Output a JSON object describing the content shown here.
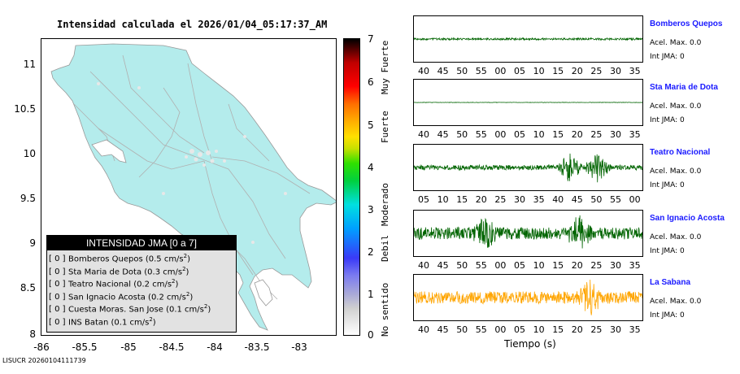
{
  "map": {
    "title": "Intensidad calculada el 2026/01/04_05:17:37_AM",
    "y_ticks": [
      "11",
      "10.5",
      "10",
      "9.5",
      "9",
      "8.5",
      "8"
    ],
    "x_ticks": [
      "-86",
      "-85.5",
      "-85",
      "-84.5",
      "-84",
      "-83.5",
      "-83"
    ],
    "land_color": "#b4ecec",
    "road_color": "#a0a0a0"
  },
  "legend": {
    "title": "INTENSIDAD JMA [0 a 7]",
    "rows": [
      {
        "bracket": "[ 0 ]",
        "text": "Bomberos Quepos (0.5 cm/s",
        "sup": "2",
        "close": ")"
      },
      {
        "bracket": "[ 0 ]",
        "text": "Sta Maria de Dota (0.3 cm/s",
        "sup": "2",
        "close": ")"
      },
      {
        "bracket": "[ 0 ]",
        "text": "Teatro Nacional (0.2 cm/s",
        "sup": "2",
        "close": ")"
      },
      {
        "bracket": "[ 0 ]",
        "text": "San Ignacio Acosta (0.2 cm/s",
        "sup": "2",
        "close": ")"
      },
      {
        "bracket": "[ 0 ]",
        "text": "Cuesta Moras. San Jose (0.1 cm/s",
        "sup": "2",
        "close": ")"
      },
      {
        "bracket": "[ 0 ]",
        "text": "INS Batan (0.1 cm/s",
        "sup": "2",
        "close": ")"
      }
    ]
  },
  "colorbar": {
    "ticks": [
      "7",
      "6",
      "5",
      "4",
      "3",
      "2",
      "1",
      "0"
    ],
    "words": [
      "Muy Fuerte",
      "Fuerte",
      "Moderado",
      "Debil",
      "No sentido"
    ]
  },
  "footer": "LISUCR 20260104111739",
  "traces": {
    "xlabel": "Tiempo (s)",
    "stations": [
      {
        "name": "Bomberos Quepos",
        "acel": "Acel. Max. 0.0",
        "jma": "Int JMA: 0",
        "color": "#006400",
        "ticks": [
          "40",
          "45",
          "50",
          "55",
          "00",
          "05",
          "10",
          "15",
          "20",
          "25",
          "30",
          "35"
        ],
        "amp": 0.05,
        "bursts": []
      },
      {
        "name": "Sta Maria de Dota",
        "acel": "Acel. Max. 0.0",
        "jma": "Int JMA: 0",
        "color": "#006400",
        "ticks": [
          "40",
          "45",
          "50",
          "55",
          "00",
          "05",
          "10",
          "15",
          "20",
          "25",
          "30",
          "35"
        ],
        "amp": 0.01,
        "bursts": []
      },
      {
        "name": "Teatro Nacional",
        "acel": "Acel. Max. 0.0",
        "jma": "Int JMA: 0",
        "color": "#006400",
        "ticks": [
          "05",
          "10",
          "15",
          "20",
          "25",
          "30",
          "35",
          "40",
          "45",
          "50",
          "55",
          "00"
        ],
        "amp": 0.12,
        "bursts": [
          0.68,
          0.8
        ]
      },
      {
        "name": "San Ignacio Acosta",
        "acel": "Acel. Max. 0.0",
        "jma": "Int JMA: 0",
        "color": "#006400",
        "ticks": [
          "40",
          "45",
          "50",
          "55",
          "00",
          "05",
          "10",
          "15",
          "20",
          "25",
          "30",
          "35"
        ],
        "amp": 0.3,
        "bursts": [
          0.31,
          0.72
        ]
      },
      {
        "name": "La Sabana",
        "acel": "Acel. Max. 0.0",
        "jma": "Int JMA: 0",
        "color": "#ffa500",
        "ticks": [
          "40",
          "45",
          "50",
          "55",
          "00",
          "05",
          "10",
          "15",
          "20",
          "25",
          "30",
          "35"
        ],
        "amp": 0.3,
        "bursts": [
          0.77
        ]
      }
    ]
  }
}
